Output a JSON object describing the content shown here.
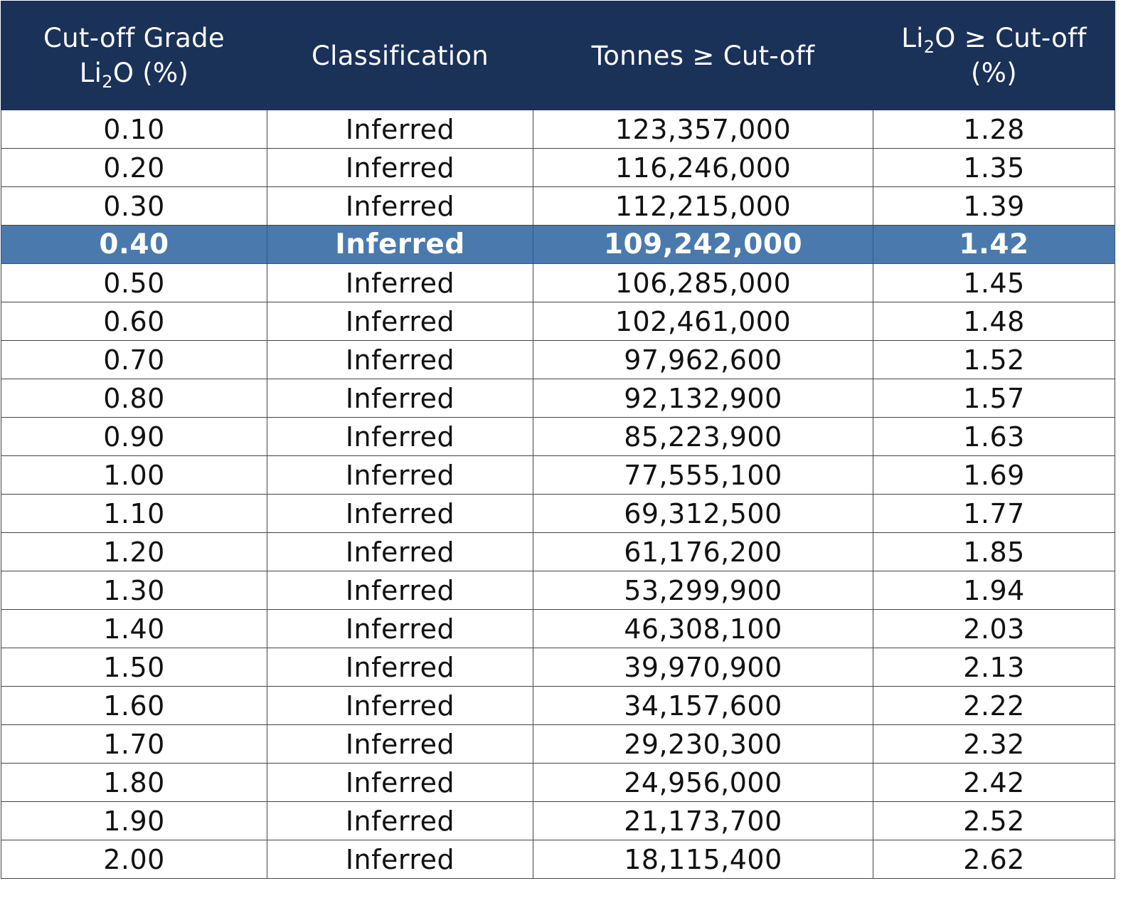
{
  "table": {
    "headers": [
      {
        "line1": "Cut-off Grade",
        "line2_pre": "Li",
        "line2_sub": "2",
        "line2_post": "O (%)"
      },
      {
        "label": "Classification"
      },
      {
        "label": "Tonnes ≥ Cut-off"
      },
      {
        "line1_pre": "Li",
        "line1_sub": "2",
        "line1_post": "O ≥ Cut-off",
        "line2": "(%)"
      }
    ],
    "highlight_row_index": 3,
    "colors": {
      "header_bg": "#1a3158",
      "header_text": "#ffffff",
      "highlight_bg": "#4a79ae",
      "highlight_text": "#ffffff",
      "grid": "#444444"
    },
    "rows": [
      [
        "0.10",
        "Inferred",
        "123,357,000",
        "1.28"
      ],
      [
        "0.20",
        "Inferred",
        "116,246,000",
        "1.35"
      ],
      [
        "0.30",
        "Inferred",
        "112,215,000",
        "1.39"
      ],
      [
        "0.40",
        "Inferred",
        "109,242,000",
        "1.42"
      ],
      [
        "0.50",
        "Inferred",
        "106,285,000",
        "1.45"
      ],
      [
        "0.60",
        "Inferred",
        "102,461,000",
        "1.48"
      ],
      [
        "0.70",
        "Inferred",
        "97,962,600",
        "1.52"
      ],
      [
        "0.80",
        "Inferred",
        "92,132,900",
        "1.57"
      ],
      [
        "0.90",
        "Inferred",
        "85,223,900",
        "1.63"
      ],
      [
        "1.00",
        "Inferred",
        "77,555,100",
        "1.69"
      ],
      [
        "1.10",
        "Inferred",
        "69,312,500",
        "1.77"
      ],
      [
        "1.20",
        "Inferred",
        "61,176,200",
        "1.85"
      ],
      [
        "1.30",
        "Inferred",
        "53,299,900",
        "1.94"
      ],
      [
        "1.40",
        "Inferred",
        "46,308,100",
        "2.03"
      ],
      [
        "1.50",
        "Inferred",
        "39,970,900",
        "2.13"
      ],
      [
        "1.60",
        "Inferred",
        "34,157,600",
        "2.22"
      ],
      [
        "1.70",
        "Inferred",
        "29,230,300",
        "2.32"
      ],
      [
        "1.80",
        "Inferred",
        "24,956,000",
        "2.42"
      ],
      [
        "1.90",
        "Inferred",
        "21,173,700",
        "2.52"
      ],
      [
        "2.00",
        "Inferred",
        "18,115,400",
        "2.62"
      ]
    ]
  }
}
